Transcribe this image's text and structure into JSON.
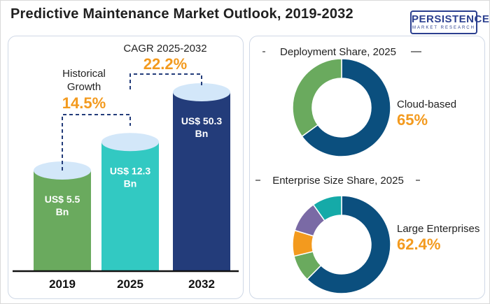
{
  "title": "Predictive Maintenance Market Outlook, 2019-2032",
  "logo": {
    "main": "PERSISTENCE",
    "sub": "MARKET RESEARCH"
  },
  "colors": {
    "bar_2019": "#6aaa5e",
    "bar_2025": "#32c9c2",
    "bar_2032": "#233c7a",
    "orange": "#f39a1e",
    "navy": "#0b4f7e",
    "green": "#6aaa5e",
    "teal": "#15aaa8",
    "purple": "#7a6aa5",
    "ellipse": "#d3e7f9"
  },
  "annotations": {
    "historical_label_line1": "Historical",
    "historical_label_line2": "Growth",
    "historical_value": "14.5%",
    "cagr_label": "CAGR 2025-2032",
    "cagr_value": "22.2%"
  },
  "chart_data": [
    {
      "type": "bar",
      "categories": [
        "2019",
        "2025",
        "2032"
      ],
      "values": [
        5.5,
        12.3,
        50.3
      ],
      "data_labels": [
        [
          "US$ 5.5",
          "Bn"
        ],
        [
          "US$ 12.3",
          "Bn"
        ],
        [
          "US$ 50.3",
          "Bn"
        ]
      ]
    },
    {
      "type": "pie",
      "title": "Deployment Share, 2025",
      "slices": [
        {
          "name": "Cloud-based",
          "value": 65
        },
        {
          "value": 35
        }
      ],
      "highlight_label": "Cloud-based",
      "highlight_value": "65%"
    },
    {
      "type": "pie",
      "title": "Enterprise Size Share, 2025",
      "slices": [
        {
          "name": "Large Enterprises",
          "value": 62.4
        },
        {
          "value": 8.8
        },
        {
          "value": 8.5
        },
        {
          "value": 10.5
        },
        {
          "value": 9.8
        }
      ],
      "highlight_label": "Large Enterprises",
      "highlight_value": "62.4%"
    }
  ]
}
